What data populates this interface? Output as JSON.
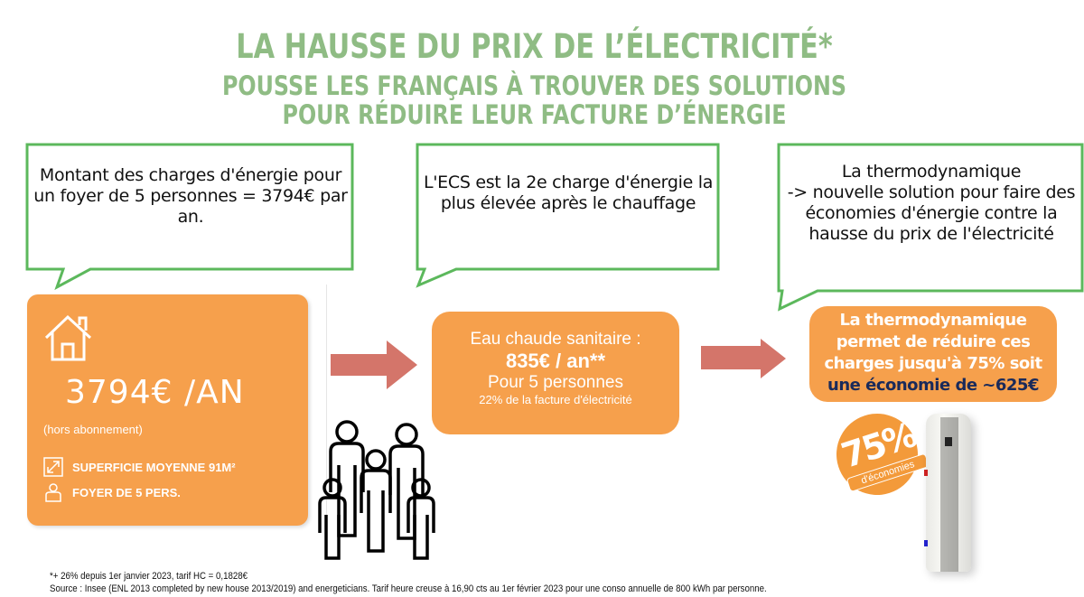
{
  "title": {
    "line1": "LA HAUSSE DU PRIX DE L’ÉLECTRICITÉ*",
    "line2": "POUSSE LES FRANÇAIS À TROUVER DES SOLUTIONS",
    "line3": "POUR RÉDUIRE LEUR FACTURE D’ÉNERGIE",
    "color": "#8fbc84"
  },
  "callouts": [
    {
      "text": "Montant des charges d'énergie pour un foyer de 5 personnes = 3794€ par an."
    },
    {
      "text": "L'ECS est la 2e charge d'énergie la plus élevée après le chauffage"
    },
    {
      "line1": "La thermodynamique",
      "line2": "-> nouvelle solution pour faire des économies d'énergie contre la hausse du prix de l'électricité"
    }
  ],
  "card": {
    "amount": "3794€ /AN",
    "note": "(hors abonnement)",
    "surface": "SUPERFICIE MOYENNE 91M²",
    "household": "FOYER DE 5 PERS.",
    "icons": [
      "house-icon",
      "resize-icon",
      "person-icon"
    ]
  },
  "middle": {
    "line1": "Eau chaude sanitaire :",
    "line2": "835€ / an**",
    "line3": "Pour 5 personnes",
    "line4": "22% de la facture d'électricité"
  },
  "right": {
    "line1": "La thermodynamique permet de réduire ces charges jusqu'à 75% soit",
    "line2": "une économie de ~625€"
  },
  "badge": {
    "percent": "75%",
    "label": "d'économies"
  },
  "footnotes": {
    "line1": "*+ 26% depuis 1er janvier 2023, tarif HC = 0,1828€",
    "line2": "Source : Insee (ENL 2013 completed by new house 2013/2019) and energeticians. Tarif heure creuse à 16,90 cts au 1er février 2023 pour une conso annuelle de 800 kWh par personne."
  },
  "colors": {
    "orange": "#f6a04c",
    "green_border": "#5cb85c",
    "arrow": "#d4756a",
    "navy": "#1a2a5a"
  }
}
